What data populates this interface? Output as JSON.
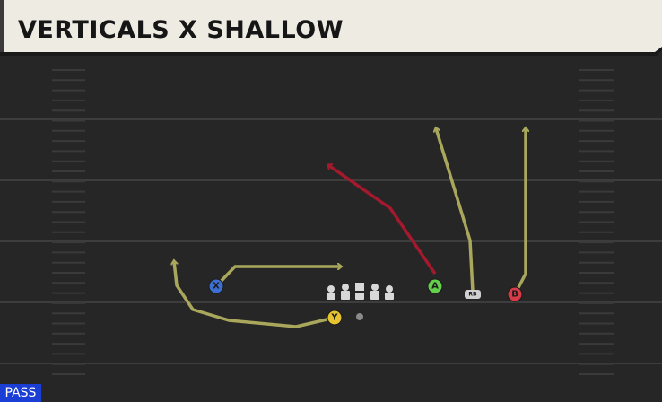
{
  "header": {
    "title": "VERTICALS X SHALLOW"
  },
  "players": [
    {
      "label": "X"
    },
    {
      "label": "Y"
    },
    {
      "label": "A"
    },
    {
      "label": "RB"
    },
    {
      "label": "B"
    }
  ],
  "badge": {
    "label": "PASS"
  }
}
